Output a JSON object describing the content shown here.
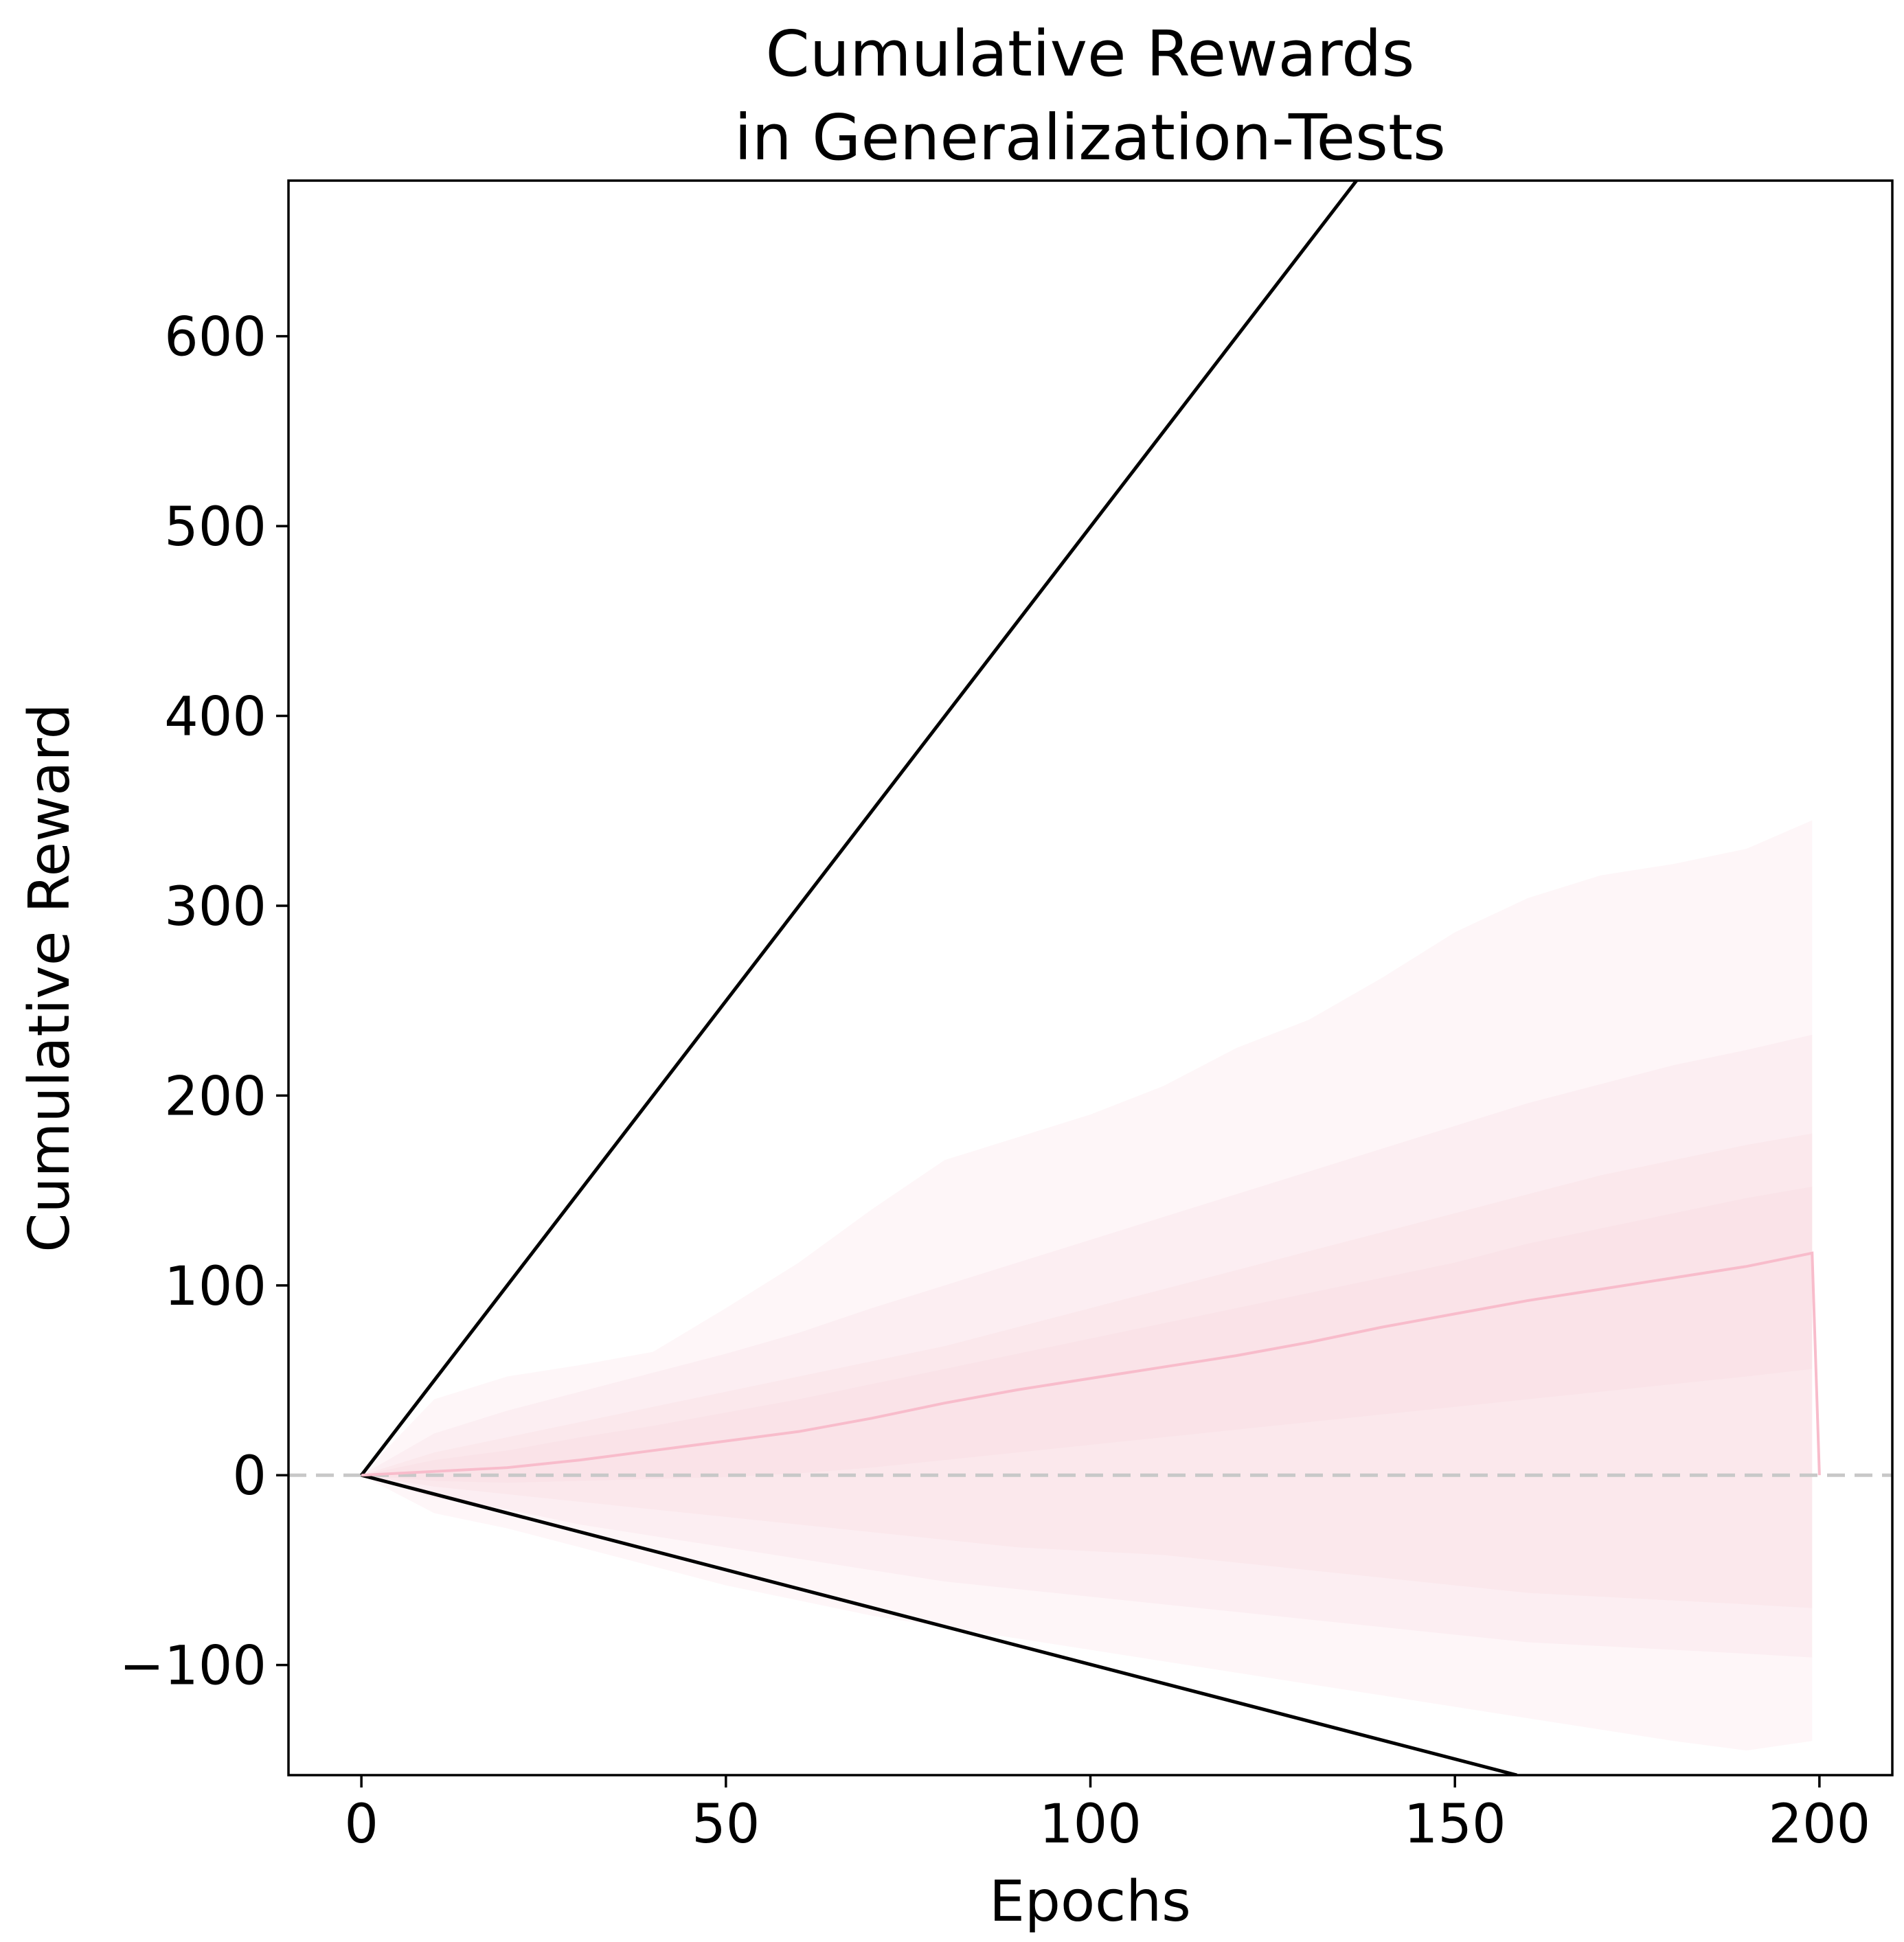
{
  "chart_data": {
    "type": "line",
    "title_lines": [
      "Cumulative Rewards",
      "in Generalization-Tests"
    ],
    "xlabel": "Epochs",
    "ylabel": "Cumulative Reward",
    "xlim": [
      -10,
      210
    ],
    "ylim": [
      -158,
      682
    ],
    "xticks": [
      0,
      50,
      100,
      150,
      200
    ],
    "yticks": [
      -100,
      0,
      100,
      200,
      300,
      400,
      500,
      600
    ],
    "xtick_labels": [
      "0",
      "50",
      "100",
      "150",
      "200"
    ],
    "ytick_labels": [
      "−100",
      "0",
      "100",
      "200",
      "300",
      "400",
      "500",
      "600"
    ],
    "grid": false,
    "legend": "none",
    "reference_line": {
      "y": 0,
      "style": "dashed",
      "color": "#c8c8c8"
    },
    "bounds": [
      {
        "x": [
          0,
          136.5
        ],
        "y": [
          0,
          682
        ],
        "color": "#000000"
      },
      {
        "x": [
          0,
          158.5
        ],
        "y": [
          0,
          -158
        ],
        "color": "#000000"
      }
    ],
    "mean_series": {
      "color": "#f8bccb",
      "x": [
        0,
        10,
        20,
        30,
        40,
        50,
        60,
        70,
        80,
        90,
        100,
        110,
        120,
        130,
        140,
        150,
        160,
        170,
        180,
        190,
        199,
        200
      ],
      "y": [
        0,
        2,
        4,
        8,
        13,
        18,
        23,
        30,
        38,
        45,
        51,
        57,
        63,
        70,
        78,
        85,
        92,
        98,
        104,
        110,
        117,
        0
      ]
    },
    "bands": {
      "color": "#fadce3",
      "x": [
        0,
        10,
        20,
        30,
        40,
        50,
        60,
        70,
        80,
        90,
        100,
        110,
        120,
        130,
        140,
        150,
        160,
        170,
        180,
        190,
        199
      ],
      "levels": [
        {
          "opacity": 0.25,
          "upper": [
            0,
            40,
            52,
            58,
            65,
            88,
            112,
            140,
            166,
            178,
            190,
            205,
            225,
            240,
            262,
            286,
            304,
            316,
            322,
            330,
            345
          ],
          "lower": [
            0,
            -20,
            -28,
            -38,
            -48,
            -58,
            -66,
            -74,
            -80,
            -86,
            -92,
            -98,
            -104,
            -110,
            -116,
            -122,
            -128,
            -134,
            -140,
            -145,
            -140
          ]
        },
        {
          "opacity": 0.3,
          "upper": [
            0,
            22,
            34,
            44,
            54,
            64,
            75,
            88,
            100,
            112,
            124,
            136,
            148,
            160,
            172,
            184,
            196,
            206,
            216,
            224,
            232
          ],
          "lower": [
            0,
            -12,
            -18,
            -26,
            -32,
            -38,
            -44,
            -50,
            -56,
            -60,
            -64,
            -68,
            -72,
            -76,
            -80,
            -84,
            -88,
            -90,
            -92,
            -94,
            -96
          ]
        },
        {
          "opacity": 0.35,
          "upper": [
            0,
            12,
            20,
            28,
            36,
            44,
            52,
            60,
            68,
            78,
            88,
            98,
            108,
            118,
            128,
            138,
            148,
            158,
            166,
            174,
            180
          ],
          "lower": [
            0,
            -6,
            -10,
            -14,
            -18,
            -22,
            -26,
            -30,
            -34,
            -38,
            -40,
            -42,
            -46,
            -50,
            -54,
            -58,
            -62,
            -64,
            -66,
            -68,
            -70
          ]
        },
        {
          "opacity": 0.4,
          "upper": [
            0,
            8,
            13,
            20,
            26,
            33,
            40,
            48,
            56,
            64,
            72,
            80,
            88,
            96,
            104,
            112,
            122,
            130,
            138,
            146,
            152
          ],
          "lower": [
            0,
            -3,
            -4,
            -3,
            -2,
            -1,
            1,
            4,
            8,
            12,
            16,
            20,
            24,
            28,
            32,
            36,
            40,
            44,
            48,
            52,
            56
          ]
        }
      ]
    }
  }
}
